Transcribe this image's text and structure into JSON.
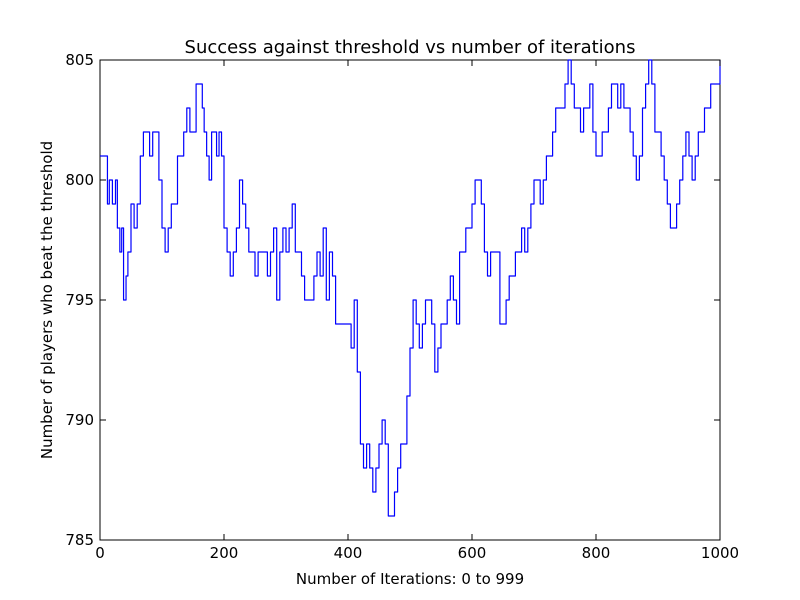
{
  "chart_data": {
    "type": "line",
    "title": "Success against threshold vs number of iterations",
    "xlabel": "Number of Iterations: 0 to 999",
    "ylabel": "Number of players who beat the threshold",
    "xlim": [
      0,
      1000
    ],
    "ylim": [
      785,
      805
    ],
    "xticks": [
      "0",
      "200",
      "400",
      "600",
      "800",
      "1000"
    ],
    "yticks": [
      "785",
      "790",
      "795",
      "800",
      "805"
    ],
    "grid": false,
    "legend": "none",
    "series": [
      {
        "color": "#0000ff",
        "x": [
          0,
          10,
          12,
          15,
          20,
          25,
          28,
          32,
          35,
          38,
          42,
          45,
          50,
          55,
          60,
          65,
          70,
          75,
          80,
          85,
          90,
          95,
          100,
          105,
          110,
          115,
          120,
          125,
          130,
          135,
          140,
          145,
          150,
          155,
          160,
          165,
          168,
          172,
          176,
          180,
          184,
          188,
          192,
          196,
          200,
          205,
          210,
          215,
          220,
          225,
          230,
          235,
          240,
          245,
          250,
          255,
          260,
          265,
          270,
          275,
          280,
          285,
          290,
          295,
          300,
          305,
          310,
          315,
          320,
          325,
          330,
          335,
          340,
          345,
          350,
          355,
          360,
          365,
          370,
          375,
          380,
          385,
          390,
          395,
          400,
          405,
          410,
          415,
          420,
          425,
          430,
          435,
          440,
          445,
          450,
          455,
          460,
          465,
          470,
          475,
          480,
          485,
          490,
          495,
          500,
          505,
          510,
          515,
          520,
          525,
          530,
          535,
          540,
          545,
          550,
          555,
          560,
          565,
          570,
          575,
          580,
          585,
          590,
          595,
          600,
          605,
          610,
          615,
          620,
          625,
          630,
          635,
          640,
          645,
          650,
          655,
          660,
          665,
          670,
          675,
          680,
          685,
          690,
          695,
          700,
          705,
          710,
          715,
          720,
          725,
          730,
          735,
          740,
          745,
          750,
          755,
          760,
          765,
          770,
          775,
          780,
          785,
          790,
          795,
          800,
          805,
          810,
          815,
          820,
          825,
          830,
          835,
          840,
          845,
          850,
          855,
          860,
          865,
          870,
          875,
          880,
          885,
          890,
          895,
          900,
          905,
          910,
          915,
          920,
          925,
          930,
          935,
          940,
          945,
          950,
          955,
          960,
          965,
          970,
          975,
          980,
          985,
          990,
          995,
          1000
        ],
        "y": [
          801,
          801,
          799,
          800,
          799,
          800,
          798,
          797,
          798,
          795,
          796,
          797,
          799,
          798,
          799,
          801,
          802,
          802,
          801,
          802,
          802,
          800,
          798,
          797,
          798,
          799,
          799,
          801,
          801,
          802,
          803,
          802,
          802,
          804,
          804,
          803,
          802,
          801,
          800,
          802,
          802,
          801,
          802,
          801,
          798,
          797,
          796,
          797,
          798,
          800,
          799,
          798,
          797,
          797,
          796,
          797,
          797,
          797,
          796,
          797,
          798,
          795,
          797,
          798,
          797,
          798,
          799,
          797,
          797,
          796,
          795,
          795,
          795,
          796,
          797,
          796,
          798,
          795,
          797,
          796,
          794,
          794,
          794,
          794,
          794,
          793,
          795,
          792,
          789,
          788,
          789,
          788,
          787,
          788,
          789,
          790,
          789,
          786,
          786,
          787,
          788,
          789,
          789,
          791,
          793,
          795,
          794,
          793,
          794,
          795,
          795,
          794,
          792,
          793,
          794,
          794,
          795,
          796,
          795,
          794,
          797,
          797,
          798,
          798,
          799,
          800,
          800,
          799,
          797,
          796,
          797,
          797,
          797,
          794,
          794,
          795,
          796,
          796,
          797,
          797,
          798,
          797,
          798,
          799,
          800,
          800,
          799,
          800,
          801,
          801,
          802,
          803,
          803,
          803,
          804,
          805,
          804,
          803,
          803,
          802,
          803,
          803,
          804,
          802,
          801,
          801,
          802,
          802,
          803,
          804,
          804,
          803,
          804,
          803,
          803,
          802,
          801,
          800,
          801,
          803,
          804,
          805,
          804,
          802,
          802,
          801,
          800,
          799,
          798,
          798,
          799,
          800,
          801,
          802,
          801,
          800,
          801,
          802,
          802,
          803,
          803,
          804,
          804,
          804,
          805
        ]
      }
    ]
  }
}
